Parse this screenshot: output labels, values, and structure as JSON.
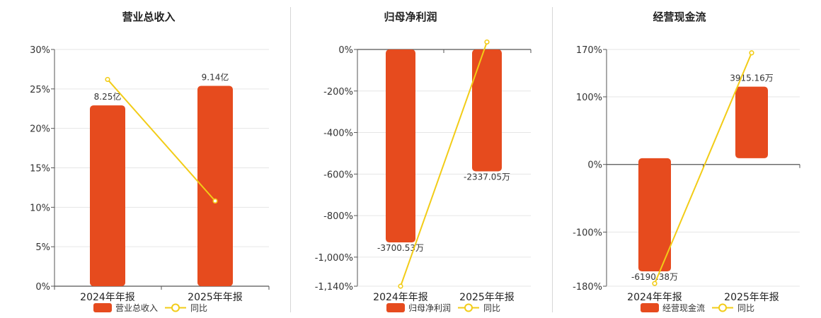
{
  "colors": {
    "bar": "#E64B1E",
    "line": "#F2CC17",
    "grid": "#e6e6e6",
    "axis": "#555555",
    "text": "#333333"
  },
  "chart_data": [
    {
      "type": "bar",
      "title": "营业总收入",
      "categories": [
        "2024年年报",
        "2025年年报"
      ],
      "series": [
        {
          "name": "营业总收入",
          "kind": "bar",
          "values": [
            8.25,
            9.14
          ],
          "labels": [
            "8.25亿",
            "9.14亿"
          ]
        },
        {
          "name": "同比",
          "kind": "line",
          "values": [
            26.2,
            10.8
          ],
          "unit": "%"
        }
      ],
      "y_percent_ticks": [
        "0%",
        "5%",
        "10%",
        "15%",
        "20%",
        "25%",
        "30%"
      ],
      "ylim_percent": [
        0,
        30
      ],
      "ylim_bar": [
        0,
        10.8
      ],
      "grid": true,
      "legend_position": "bottom"
    },
    {
      "type": "bar",
      "title": "归母净利润",
      "categories": [
        "2024年年报",
        "2025年年报"
      ],
      "series": [
        {
          "name": "归母净利润",
          "kind": "bar",
          "values": [
            -3700.53,
            -2337.05
          ],
          "labels": [
            "-3700.53万",
            "-2337.05万"
          ]
        },
        {
          "name": "同比",
          "kind": "line",
          "values": [
            -1140,
            36
          ],
          "unit": "%"
        }
      ],
      "y_percent_ticks": [
        "0%",
        "-200%",
        "-400%",
        "-600%",
        "-800%",
        "-1,000%",
        "-1,140%"
      ],
      "ylim_percent": [
        -1140,
        0
      ],
      "ylim_bar": [
        -4540,
        0
      ],
      "grid": true,
      "legend_position": "bottom"
    },
    {
      "type": "bar",
      "title": "经营现金流",
      "categories": [
        "2024年年报",
        "2025年年报"
      ],
      "series": [
        {
          "name": "经营现金流",
          "kind": "bar",
          "values": [
            -6190.38,
            3915.16
          ],
          "labels": [
            "-6190.38万",
            "3915.16万"
          ]
        },
        {
          "name": "同比",
          "kind": "line",
          "values": [
            -176,
            165
          ],
          "unit": "%"
        }
      ],
      "y_percent_ticks": [
        "170%",
        "100%",
        "0%",
        "-100%",
        "-180%"
      ],
      "ylim_percent": [
        -180,
        170
      ],
      "ylim_bar": [
        -7000,
        5950
      ],
      "grid": true,
      "legend_position": "bottom"
    }
  ]
}
